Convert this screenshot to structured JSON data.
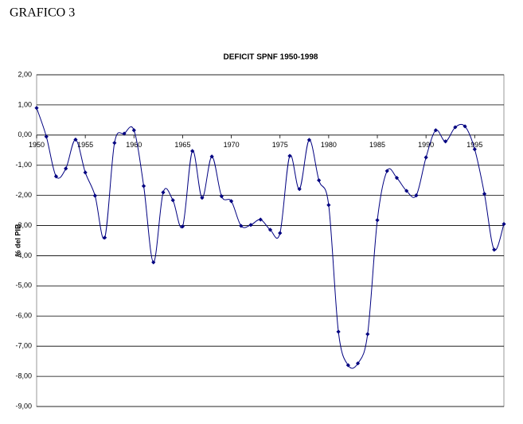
{
  "page_title": "GRAFICO 3",
  "chart_data": {
    "type": "line",
    "title": "DEFICIT SPNF 1950-1998",
    "y_label": "% del PIB",
    "x": [
      1950,
      1951,
      1952,
      1953,
      1954,
      1955,
      1956,
      1957,
      1958,
      1959,
      1960,
      1961,
      1962,
      1963,
      1964,
      1965,
      1966,
      1967,
      1968,
      1969,
      1970,
      1971,
      1972,
      1973,
      1974,
      1975,
      1976,
      1977,
      1978,
      1979,
      1980,
      1981,
      1982,
      1983,
      1984,
      1985,
      1986,
      1987,
      1988,
      1989,
      1990,
      1991,
      1992,
      1993,
      1994,
      1995,
      1996,
      1997,
      1998
    ],
    "series": [
      {
        "color": "#000080",
        "values": [
          0.9,
          -0.05,
          -1.37,
          -1.11,
          -0.15,
          -1.24,
          -2.01,
          -3.4,
          -0.26,
          0.05,
          0.16,
          -1.69,
          -4.22,
          -1.9,
          -2.16,
          -3.03,
          -0.53,
          -2.08,
          -0.71,
          -2.03,
          -2.19,
          -3.01,
          -2.98,
          -2.8,
          -3.14,
          -3.25,
          -0.69,
          -1.79,
          -0.16,
          -1.5,
          -2.32,
          -6.52,
          -7.63,
          -7.57,
          -6.6,
          -2.82,
          -1.19,
          -1.42,
          -1.85,
          -2.0,
          -0.74,
          0.16,
          -0.21,
          0.26,
          0.29,
          -0.47,
          -1.95,
          -3.8,
          -2.95
        ]
      }
    ],
    "xlim": [
      1950,
      1998
    ],
    "xticks": [
      1950,
      1955,
      1960,
      1965,
      1970,
      1975,
      1980,
      1985,
      1990,
      1995
    ],
    "ylim": [
      -9,
      2
    ],
    "yticks": [
      {
        "value": 2,
        "label": "2,00"
      },
      {
        "value": 1,
        "label": "1,00"
      },
      {
        "value": 0,
        "label": "0,00"
      },
      {
        "value": -1,
        "label": "-1,00"
      },
      {
        "value": -2,
        "label": "-2,00"
      },
      {
        "value": -3,
        "label": "-3,00"
      },
      {
        "value": -4,
        "label": "-4,00"
      },
      {
        "value": -5,
        "label": "-5,00"
      },
      {
        "value": -6,
        "label": "-6,00"
      },
      {
        "value": -7,
        "label": "-7,00"
      },
      {
        "value": -8,
        "label": "-8,00"
      },
      {
        "value": -9,
        "label": "-9,00"
      }
    ],
    "grid": true
  }
}
